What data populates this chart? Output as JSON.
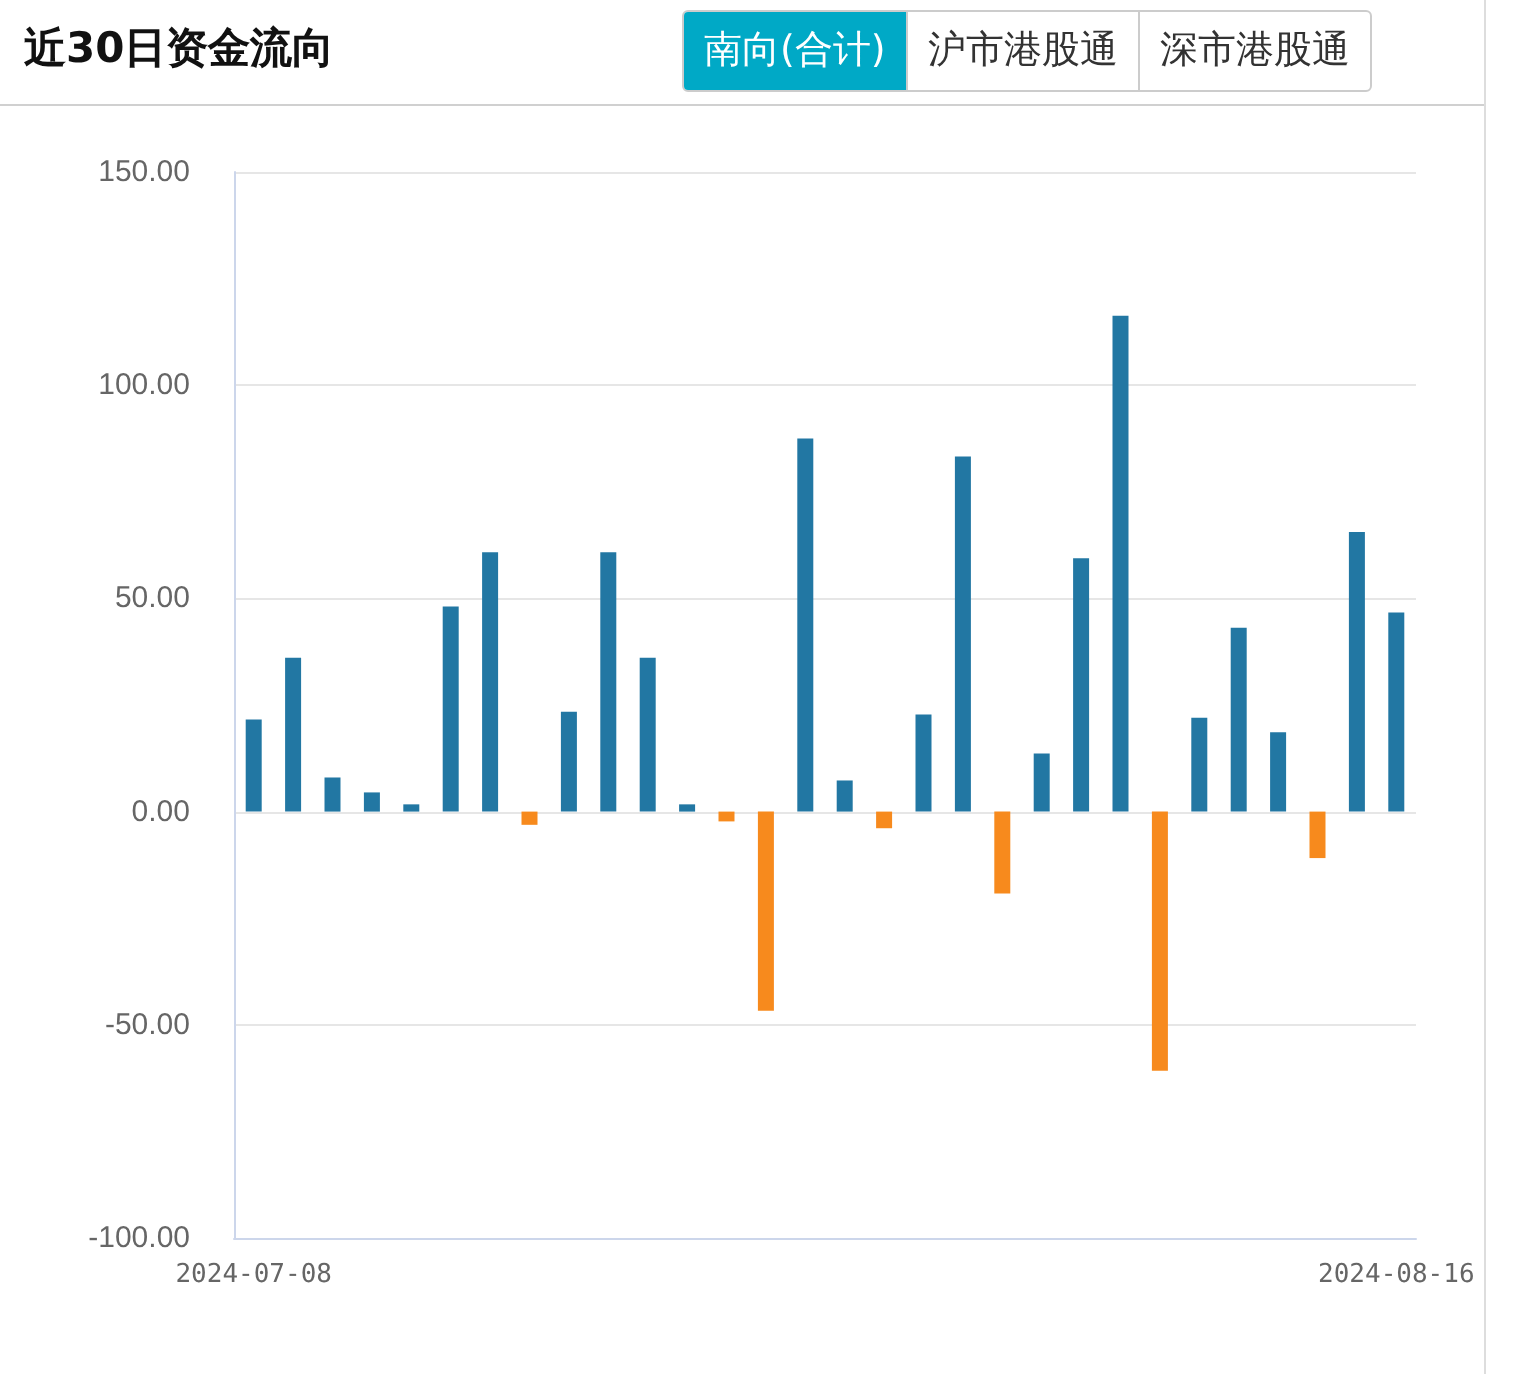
{
  "chart_data": {
    "type": "bar",
    "title": "近30日资金流向",
    "annotations": [
      "南向(合计)",
      "沪市港股通",
      "深市港股通"
    ],
    "categories": [
      "2024-07-08",
      null,
      null,
      null,
      null,
      null,
      null,
      null,
      null,
      null,
      null,
      null,
      null,
      null,
      null,
      null,
      null,
      null,
      null,
      null,
      null,
      null,
      null,
      null,
      null,
      null,
      null,
      null,
      null,
      "2024-08-16"
    ],
    "values": [
      21.6,
      36.1,
      8.0,
      4.5,
      1.7,
      48.1,
      60.8,
      -3.1,
      23.4,
      60.8,
      36.1,
      1.7,
      -2.3,
      -46.7,
      87.5,
      7.3,
      -3.9,
      22.8,
      83.3,
      -19.2,
      13.6,
      59.4,
      116.3,
      -60.8,
      22.0,
      43.1,
      18.6,
      -10.9,
      65.6,
      46.7
    ],
    "colors": [
      "#2277a3",
      "#2277a3",
      "#2277a3",
      "#2277a3",
      "#2277a3",
      "#2277a3",
      "#2277a3",
      "#f78a1d",
      "#2277a3",
      "#2277a3",
      "#2277a3",
      "#2277a3",
      "#f78a1d",
      "#f78a1d",
      "#2277a3",
      "#2277a3",
      "#f78a1d",
      "#2277a3",
      "#2277a3",
      "#f78a1d",
      "#2277a3",
      "#2277a3",
      "#2277a3",
      "#f78a1d",
      "#2277a3",
      "#2277a3",
      "#2277a3",
      "#f78a1d",
      "#2277a3",
      "#2277a3"
    ],
    "ylim": [
      -100,
      150
    ],
    "yticks": [
      {
        "value": -100,
        "label": "-100.00"
      },
      {
        "value": -50,
        "label": "-50.00"
      },
      {
        "value": 0,
        "label": "0.00"
      },
      {
        "value": 50,
        "label": "50.00"
      },
      {
        "value": 100,
        "label": "100.00"
      },
      {
        "value": 150,
        "label": "150.00"
      }
    ],
    "grid": "y"
  }
}
